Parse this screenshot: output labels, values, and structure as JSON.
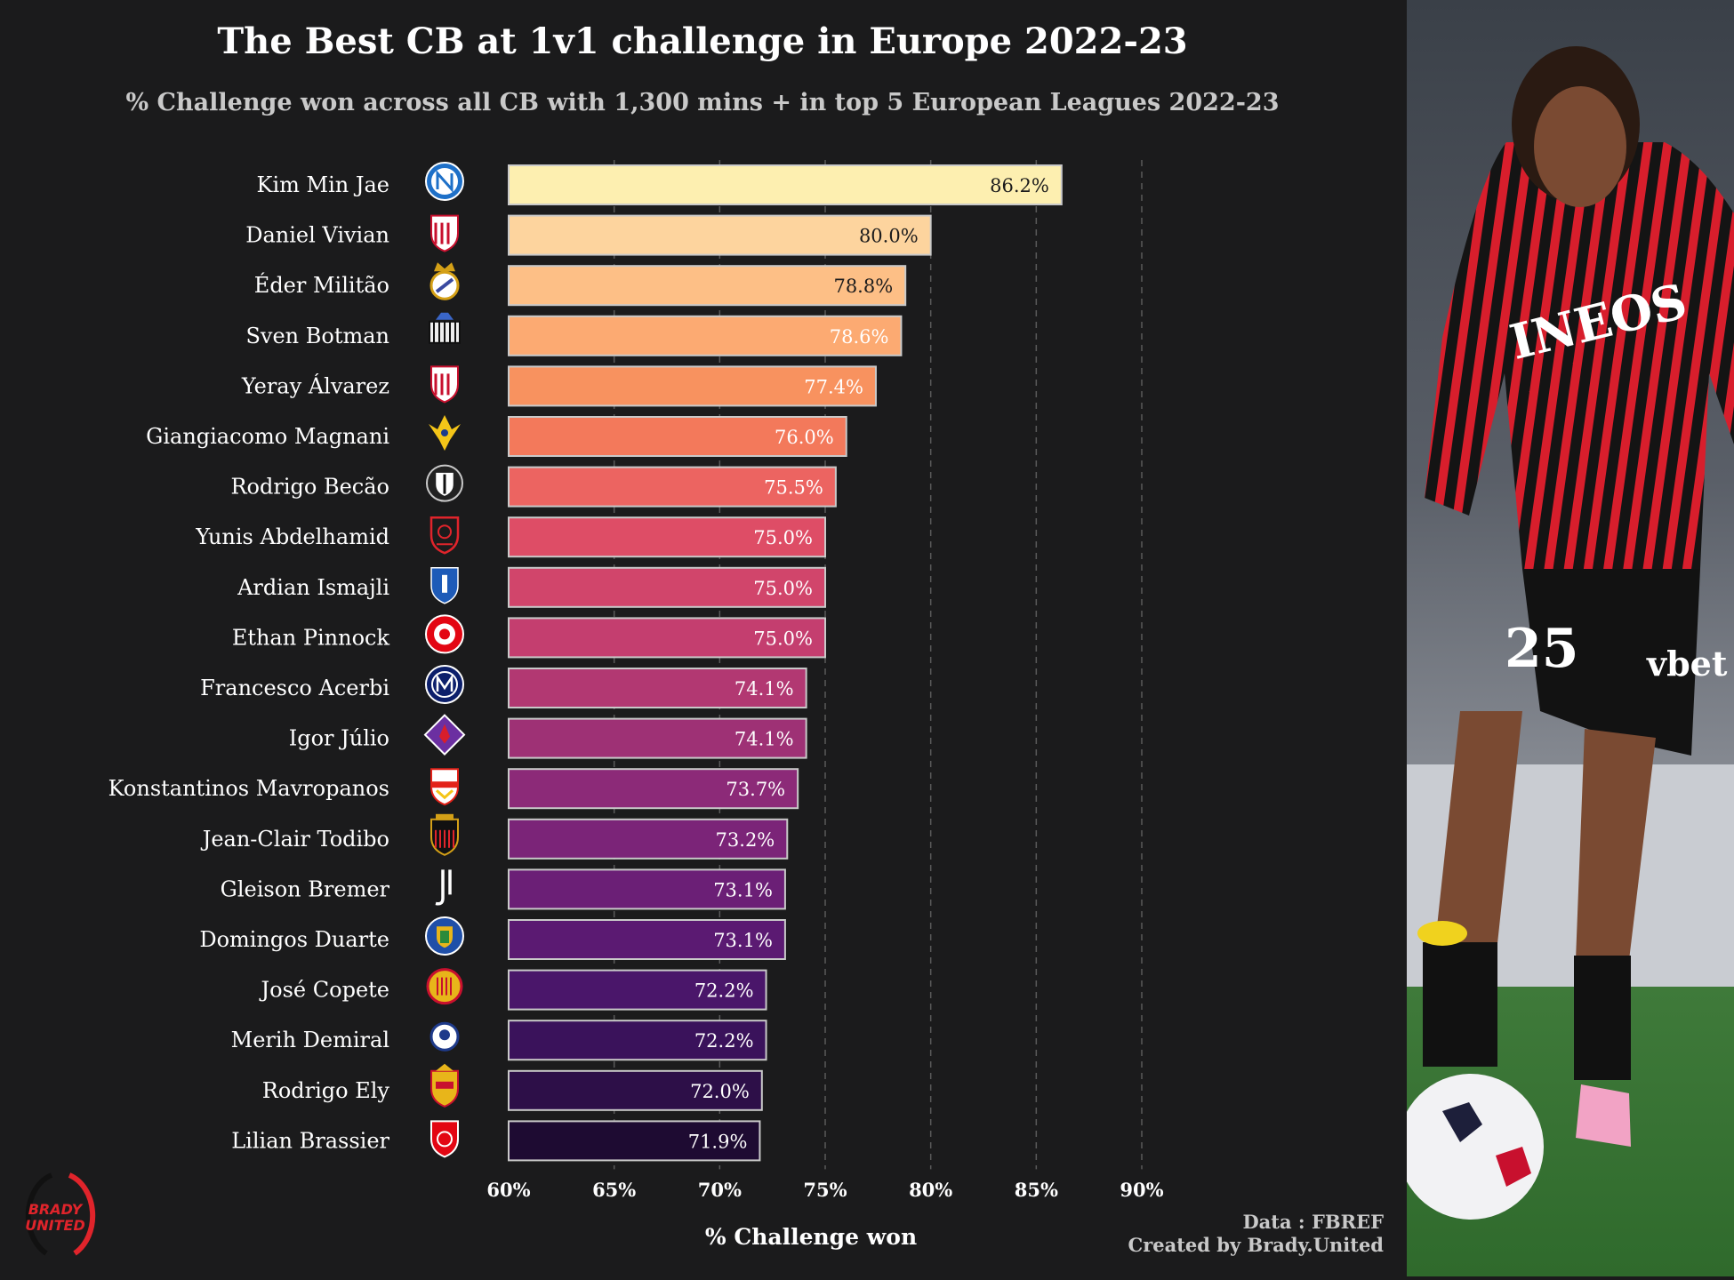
{
  "chart_data": {
    "type": "bar",
    "orientation": "horizontal",
    "title": "The Best CB at 1v1 challenge in Europe 2022-23",
    "subtitle": "% Challenge won across all CB with 1,300 mins + in top 5 European Leagues 2022-23",
    "xlabel": "% Challenge won",
    "xlim": [
      60,
      90
    ],
    "xticks": [
      "60%",
      "65%",
      "70%",
      "75%",
      "80%",
      "85%",
      "90%"
    ],
    "grid": "vertical dashed",
    "categories": [
      "Kim Min Jae",
      "Daniel Vivian",
      "Éder Militão",
      "Sven Botman",
      "Yeray Álvarez",
      "Giangiacomo Magnani",
      "Rodrigo Becão",
      "Yunis Abdelhamid",
      "Ardian Ismajli",
      "Ethan Pinnock",
      "Francesco Acerbi",
      "Igor Júlio",
      "Konstantinos Mavropanos",
      "Jean-Clair Todibo",
      "Gleison Bremer",
      "Domingos Duarte",
      "José Copete",
      "Merih Demiral",
      "Rodrigo Ely",
      "Lilian Brassier"
    ],
    "values": [
      86.2,
      80.0,
      78.8,
      78.6,
      77.4,
      76.0,
      75.5,
      75.0,
      75.0,
      75.0,
      74.1,
      74.1,
      73.7,
      73.2,
      73.1,
      73.1,
      72.2,
      72.2,
      72.0,
      71.9
    ],
    "value_labels": [
      "86.2%",
      "80.0%",
      "78.8%",
      "78.6%",
      "77.4%",
      "76.0%",
      "75.5%",
      "75.0%",
      "75.0%",
      "75.0%",
      "74.1%",
      "74.1%",
      "73.7%",
      "73.2%",
      "73.1%",
      "73.1%",
      "72.2%",
      "72.2%",
      "72.0%",
      "71.9%"
    ],
    "bar_colors": [
      "#fdefb0",
      "#fdd49e",
      "#fdbf86",
      "#fcaa72",
      "#f8925f",
      "#f3795b",
      "#ec6461",
      "#de4d66",
      "#d1456b",
      "#c43e6f",
      "#b23872",
      "#9e3175",
      "#8c2a78",
      "#7b2478",
      "#6b1f76",
      "#5b1a72",
      "#4a166a",
      "#3a125b",
      "#2d0f48",
      "#1e0b32"
    ],
    "club_icons": [
      "napoli-crest-icon",
      "athletic-bilbao-crest-icon",
      "real-madrid-crest-icon",
      "newcastle-crest-icon",
      "athletic-bilbao-crest-icon",
      "verona-crest-icon",
      "udinese-crest-icon",
      "reims-crest-icon",
      "empoli-crest-icon",
      "brentford-crest-icon",
      "inter-crest-icon",
      "fiorentina-crest-icon",
      "stuttgart-crest-icon",
      "nice-crest-icon",
      "juventus-crest-icon",
      "getafe-crest-icon",
      "mallorca-crest-icon",
      "atalanta-crest-icon",
      "almeria-crest-icon",
      "brest-crest-icon"
    ]
  },
  "credits": {
    "source": "Data : FBREF",
    "author": "Created by Brady.United"
  },
  "logo": {
    "line1": "BRADY",
    "line2": "UNITED"
  },
  "photo": {
    "shirt_sponsor": "INEOS",
    "shirt_number": "25",
    "shorts_sponsor": "vbet"
  },
  "colors": {
    "background": "#1b1b1c",
    "logo_red": "#e0242b"
  }
}
